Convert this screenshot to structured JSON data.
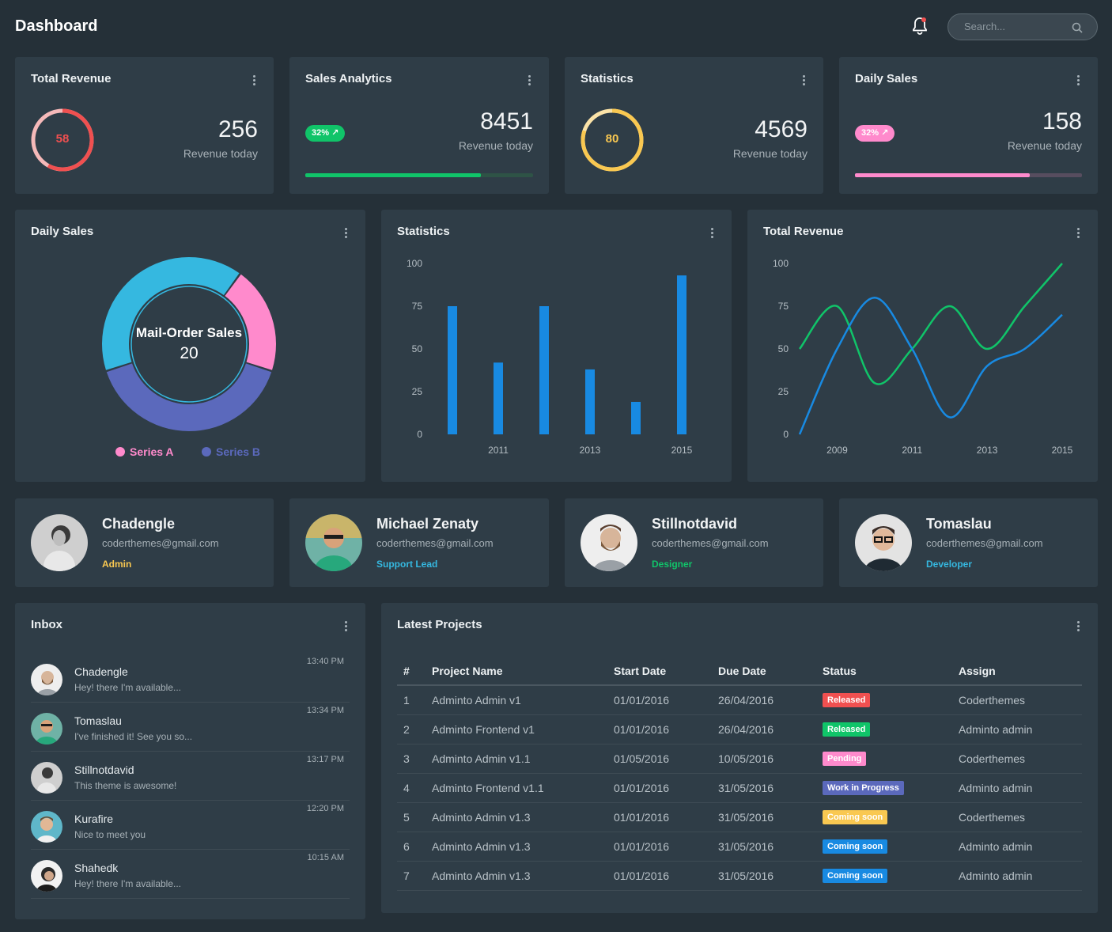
{
  "header": {
    "title": "Dashboard",
    "search_placeholder": "Search..."
  },
  "stats": [
    {
      "title": "Total Revenue",
      "ring_value": "58",
      "ring_percent": 58,
      "value": "256",
      "label": "Revenue today",
      "color": "#f05050"
    },
    {
      "title": "Sales Analytics",
      "badge": "32%",
      "value": "8451",
      "label": "Revenue today",
      "progress": 77,
      "color": "#10c469"
    },
    {
      "title": "Statistics",
      "ring_value": "80",
      "ring_percent": 80,
      "value": "4569",
      "label": "Revenue today",
      "color": "#f9c851"
    },
    {
      "title": "Daily Sales",
      "badge": "32%",
      "value": "158",
      "label": "Revenue today",
      "progress": 77,
      "color": "#ff8acc"
    }
  ],
  "donut": {
    "title": "Daily Sales",
    "center_label": "Mail-Order Sales",
    "center_value": "20",
    "legend": [
      {
        "name": "Series A",
        "color": "#ff8acc"
      },
      {
        "name": "Series B",
        "color": "#5b69bc"
      }
    ]
  },
  "bar_card": {
    "title": "Statistics"
  },
  "line_card": {
    "title": "Total Revenue"
  },
  "chart_data": [
    {
      "type": "pie",
      "title": "Daily Sales",
      "segments": [
        {
          "name": "Mail-Order Sales",
          "value": 20,
          "color": "#ff8acc"
        },
        {
          "name": "",
          "value": 40,
          "color": "#5b69bc"
        },
        {
          "name": "",
          "value": 40,
          "color": "#35b8e0"
        }
      ],
      "legend": [
        "Series A",
        "Series B"
      ]
    },
    {
      "type": "bar",
      "title": "Statistics",
      "x": [
        2010,
        2011,
        2012,
        2013,
        2014,
        2015
      ],
      "xticks": [
        "2011",
        "2013",
        "2015"
      ],
      "yticks": [
        "0",
        "25",
        "50",
        "75",
        "100"
      ],
      "values": [
        75,
        42,
        75,
        38,
        19,
        93
      ],
      "ylim": [
        0,
        100
      ],
      "color": "#188ae2"
    },
    {
      "type": "line",
      "title": "Total Revenue",
      "xticks": [
        "2009",
        "2011",
        "2013",
        "2015"
      ],
      "yticks": [
        "0",
        "25",
        "50",
        "75",
        "100"
      ],
      "ylim": [
        0,
        100
      ],
      "series": [
        {
          "color": "#10c469",
          "x": [
            2008,
            2009,
            2010,
            2011,
            2012,
            2013,
            2014,
            2015
          ],
          "values": [
            50,
            75,
            30,
            50,
            75,
            50,
            75,
            100
          ]
        },
        {
          "color": "#188ae2",
          "x": [
            2008,
            2009,
            2010,
            2011,
            2012,
            2013,
            2014,
            2015
          ],
          "values": [
            0,
            50,
            80,
            50,
            10,
            40,
            50,
            70
          ]
        }
      ]
    }
  ],
  "profiles": [
    {
      "name": "Chadengle",
      "email": "coderthemes@gmail.com",
      "role": "Admin",
      "role_color": "#f9c851"
    },
    {
      "name": "Michael Zenaty",
      "email": "coderthemes@gmail.com",
      "role": "Support Lead",
      "role_color": "#35b8e0"
    },
    {
      "name": "Stillnotdavid",
      "email": "coderthemes@gmail.com",
      "role": "Designer",
      "role_color": "#10c469"
    },
    {
      "name": "Tomaslau",
      "email": "coderthemes@gmail.com",
      "role": "Developer",
      "role_color": "#35b8e0"
    }
  ],
  "inbox": {
    "title": "Inbox",
    "messages": [
      {
        "name": "Chadengle",
        "text": "Hey! there I'm available...",
        "time": "13:40 PM"
      },
      {
        "name": "Tomaslau",
        "text": "I've finished it! See you so...",
        "time": "13:34 PM"
      },
      {
        "name": "Stillnotdavid",
        "text": "This theme is awesome!",
        "time": "13:17 PM"
      },
      {
        "name": "Kurafire",
        "text": "Nice to meet you",
        "time": "12:20 PM"
      },
      {
        "name": "Shahedk",
        "text": "Hey! there I'm available...",
        "time": "10:15 AM"
      }
    ]
  },
  "projects": {
    "title": "Latest Projects",
    "columns": [
      "#",
      "Project Name",
      "Start Date",
      "Due Date",
      "Status",
      "Assign"
    ],
    "rows": [
      {
        "num": "1",
        "name": "Adminto Admin v1",
        "start": "01/01/2016",
        "due": "26/04/2016",
        "status": "Released",
        "status_color": "#f05050",
        "assign": "Coderthemes"
      },
      {
        "num": "2",
        "name": "Adminto Frontend v1",
        "start": "01/01/2016",
        "due": "26/04/2016",
        "status": "Released",
        "status_color": "#10c469",
        "assign": "Adminto admin"
      },
      {
        "num": "3",
        "name": "Adminto Admin v1.1",
        "start": "01/05/2016",
        "due": "10/05/2016",
        "status": "Pending",
        "status_color": "#ff8acc",
        "assign": "Coderthemes"
      },
      {
        "num": "4",
        "name": "Adminto Frontend v1.1",
        "start": "01/01/2016",
        "due": "31/05/2016",
        "status": "Work in Progress",
        "status_color": "#5b69bc",
        "assign": "Adminto admin"
      },
      {
        "num": "5",
        "name": "Adminto Admin v1.3",
        "start": "01/01/2016",
        "due": "31/05/2016",
        "status": "Coming soon",
        "status_color": "#f9c851",
        "assign": "Coderthemes"
      },
      {
        "num": "6",
        "name": "Adminto Admin v1.3",
        "start": "01/01/2016",
        "due": "31/05/2016",
        "status": "Coming soon",
        "status_color": "#188ae2",
        "assign": "Adminto admin"
      },
      {
        "num": "7",
        "name": "Adminto Admin v1.3",
        "start": "01/01/2016",
        "due": "31/05/2016",
        "status": "Coming soon",
        "status_color": "#188ae2",
        "assign": "Adminto admin"
      }
    ]
  }
}
